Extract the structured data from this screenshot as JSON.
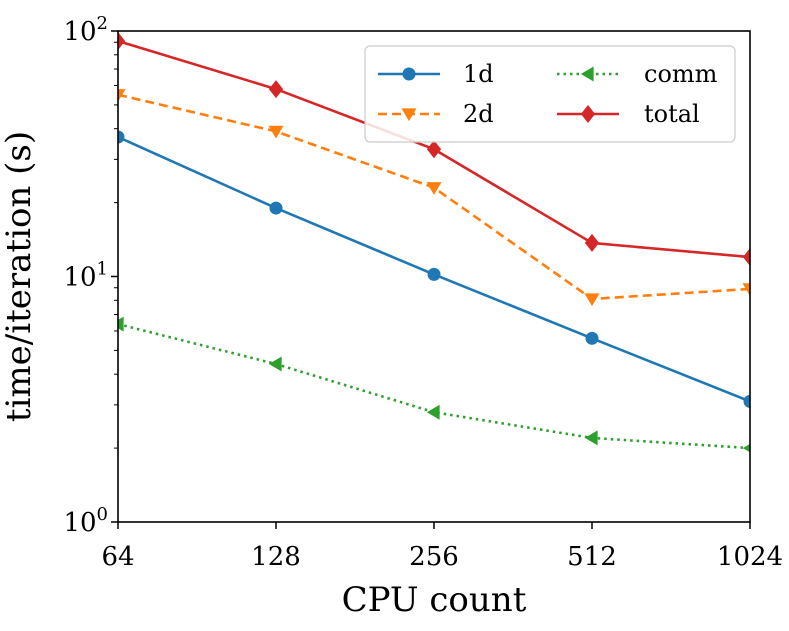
{
  "chart_data": {
    "type": "line",
    "title": "",
    "xlabel": "CPU count",
    "ylabel": "time/iteration (s)",
    "xscale": "log2",
    "yscale": "log10",
    "x": [
      64,
      128,
      256,
      512,
      1024
    ],
    "xtick_labels": [
      "64",
      "128",
      "256",
      "512",
      "1024"
    ],
    "ylim": [
      1,
      100
    ],
    "ytick_labels": [
      {
        "base": "10",
        "exp": "0",
        "value": 1
      },
      {
        "base": "10",
        "exp": "1",
        "value": 10
      },
      {
        "base": "10",
        "exp": "2",
        "value": 100
      }
    ],
    "grid": false,
    "legend_position": "top-right",
    "series": [
      {
        "name": "1d",
        "color": "#1f77b4",
        "style": "solid",
        "marker": "circle",
        "values": [
          37,
          19,
          10.2,
          5.6,
          3.1
        ]
      },
      {
        "name": "2d",
        "color": "#ff7f0e",
        "style": "dashed",
        "marker": "triangle-down",
        "values": [
          55,
          39,
          23,
          8.1,
          8.9
        ]
      },
      {
        "name": "comm",
        "color": "#2ca02c",
        "style": "dotted",
        "marker": "triangle-left",
        "values": [
          6.4,
          4.4,
          2.8,
          2.2,
          2.0
        ]
      },
      {
        "name": "total",
        "color": "#d62728",
        "style": "solid",
        "marker": "diamond",
        "values": [
          91,
          58,
          33,
          13.7,
          12
        ]
      }
    ]
  }
}
